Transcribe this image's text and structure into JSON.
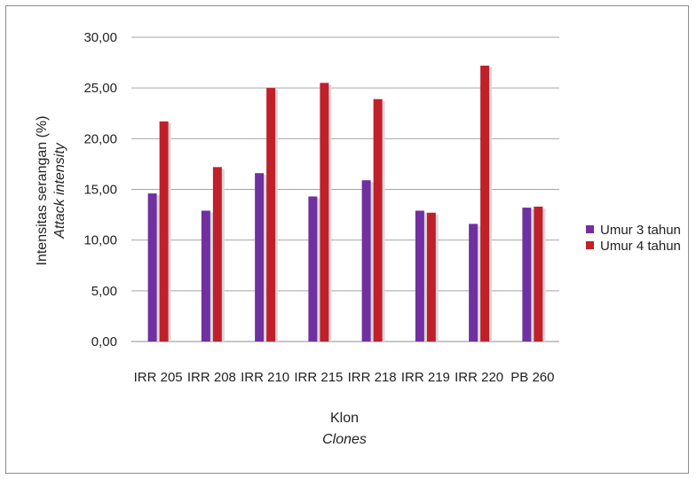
{
  "chart_data": {
    "type": "bar",
    "categories": [
      "IRR 205",
      "IRR 208",
      "IRR 210",
      "IRR 215",
      "IRR 218",
      "IRR 219",
      "IRR 220",
      "PB 260"
    ],
    "series": [
      {
        "name": "Umur 3 tahun",
        "color": "#7030a0",
        "values": [
          14.6,
          12.9,
          16.6,
          14.3,
          15.9,
          12.9,
          11.6,
          13.2
        ]
      },
      {
        "name": "Umur 4 tahun",
        "color": "#c0202a",
        "values": [
          21.7,
          17.2,
          25.0,
          25.5,
          23.9,
          12.7,
          27.2,
          13.3
        ]
      }
    ],
    "ylabel": "Intensitas serangan (%)",
    "ylabel_italic": "Attack intensity",
    "xlabel": "Klon",
    "xlabel_italic": "Clones",
    "ylim": [
      0,
      30
    ],
    "yticks": [
      "0,00",
      "5,00",
      "10,00",
      "15,00",
      "20,00",
      "25,00",
      "30,00"
    ],
    "grid": true,
    "legend_position": "right"
  }
}
